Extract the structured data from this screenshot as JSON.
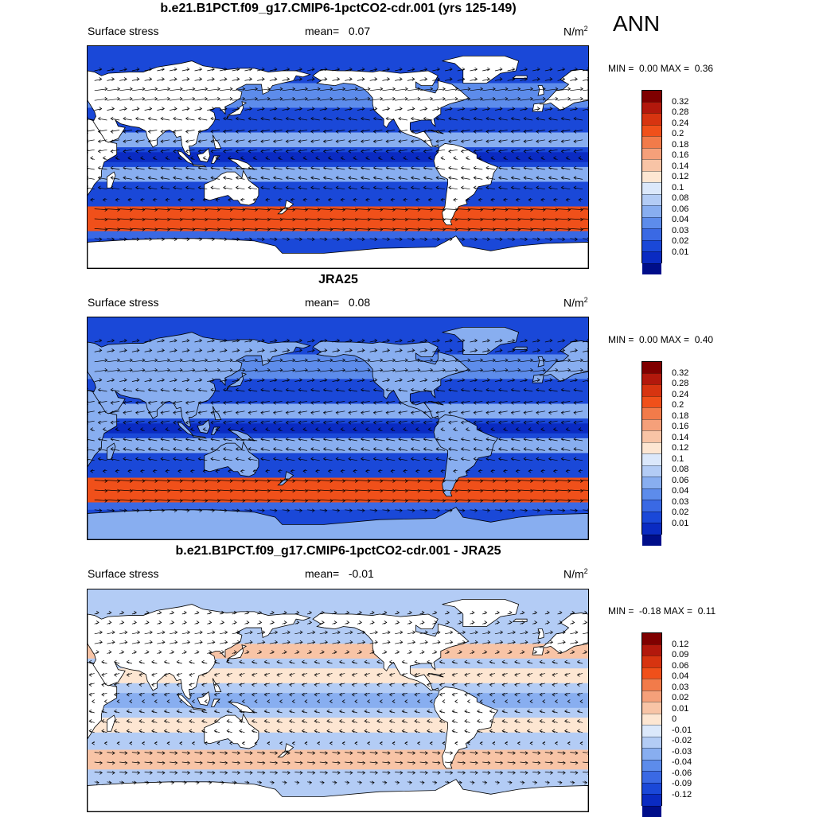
{
  "season": "ANN",
  "panels": [
    {
      "title": "b.e21.B1PCT.f09_g17.CMIP6-1pctCO2-cdr.001 (yrs 125-149)",
      "variable": "Surface stress",
      "mean_label": "mean=",
      "mean_value": "0.07",
      "units_base": "N/m",
      "units_sup": "2",
      "min_label": "MIN =",
      "min_value": "0.00",
      "max_label": "MAX =",
      "max_value": "0.36",
      "colorbar": {
        "ticks": [
          "0.32",
          "0.28",
          "0.24",
          "0.2",
          "0.18",
          "0.16",
          "0.14",
          "0.12",
          "0.1",
          "0.08",
          "0.06",
          "0.04",
          "0.03",
          "0.02",
          "0.01"
        ],
        "colors": [
          "#7f0000",
          "#b2180c",
          "#d73410",
          "#f0501a",
          "#f27b4a",
          "#f5a07a",
          "#f8c4a6",
          "#fde6d2",
          "#dbe8fb",
          "#b3ccf5",
          "#88aef0",
          "#5d8ceb",
          "#3a69e4",
          "#1a48d8",
          "#0a2bc2",
          "#000e8a"
        ]
      },
      "map_style": "model"
    },
    {
      "title": "JRA25",
      "variable": "Surface stress",
      "mean_label": "mean=",
      "mean_value": "0.08",
      "units_base": "N/m",
      "units_sup": "2",
      "min_label": "MIN =",
      "min_value": "0.00",
      "max_label": "MAX =",
      "max_value": "0.40",
      "colorbar": {
        "ticks": [
          "0.32",
          "0.28",
          "0.24",
          "0.2",
          "0.18",
          "0.16",
          "0.14",
          "0.12",
          "0.1",
          "0.08",
          "0.06",
          "0.04",
          "0.03",
          "0.02",
          "0.01"
        ],
        "colors": [
          "#7f0000",
          "#b2180c",
          "#d73410",
          "#f0501a",
          "#f27b4a",
          "#f5a07a",
          "#f8c4a6",
          "#fde6d2",
          "#dbe8fb",
          "#b3ccf5",
          "#88aef0",
          "#5d8ceb",
          "#3a69e4",
          "#1a48d8",
          "#0a2bc2",
          "#000e8a"
        ]
      },
      "map_style": "obs"
    },
    {
      "title": "b.e21.B1PCT.f09_g17.CMIP6-1pctCO2-cdr.001 - JRA25",
      "variable": "Surface stress",
      "mean_label": "mean=",
      "mean_value": "-0.01",
      "units_base": "N/m",
      "units_sup": "2",
      "min_label": "MIN =",
      "min_value": "-0.18",
      "max_label": "MAX =",
      "max_value": "0.11",
      "colorbar": {
        "ticks": [
          "0.12",
          "0.09",
          "0.06",
          "0.04",
          "0.03",
          "0.02",
          "0.01",
          "0",
          "-0.01",
          "-0.02",
          "-0.03",
          "-0.04",
          "-0.06",
          "-0.09",
          "-0.12"
        ],
        "colors": [
          "#7f0000",
          "#b2180c",
          "#d73410",
          "#f0501a",
          "#f27b4a",
          "#f5a07a",
          "#f8c4a6",
          "#fde6d2",
          "#dbe8fb",
          "#b3ccf5",
          "#88aef0",
          "#5d8ceb",
          "#3a69e4",
          "#1a48d8",
          "#0a2bc2",
          "#000e8a"
        ]
      },
      "map_style": "diff"
    }
  ]
}
